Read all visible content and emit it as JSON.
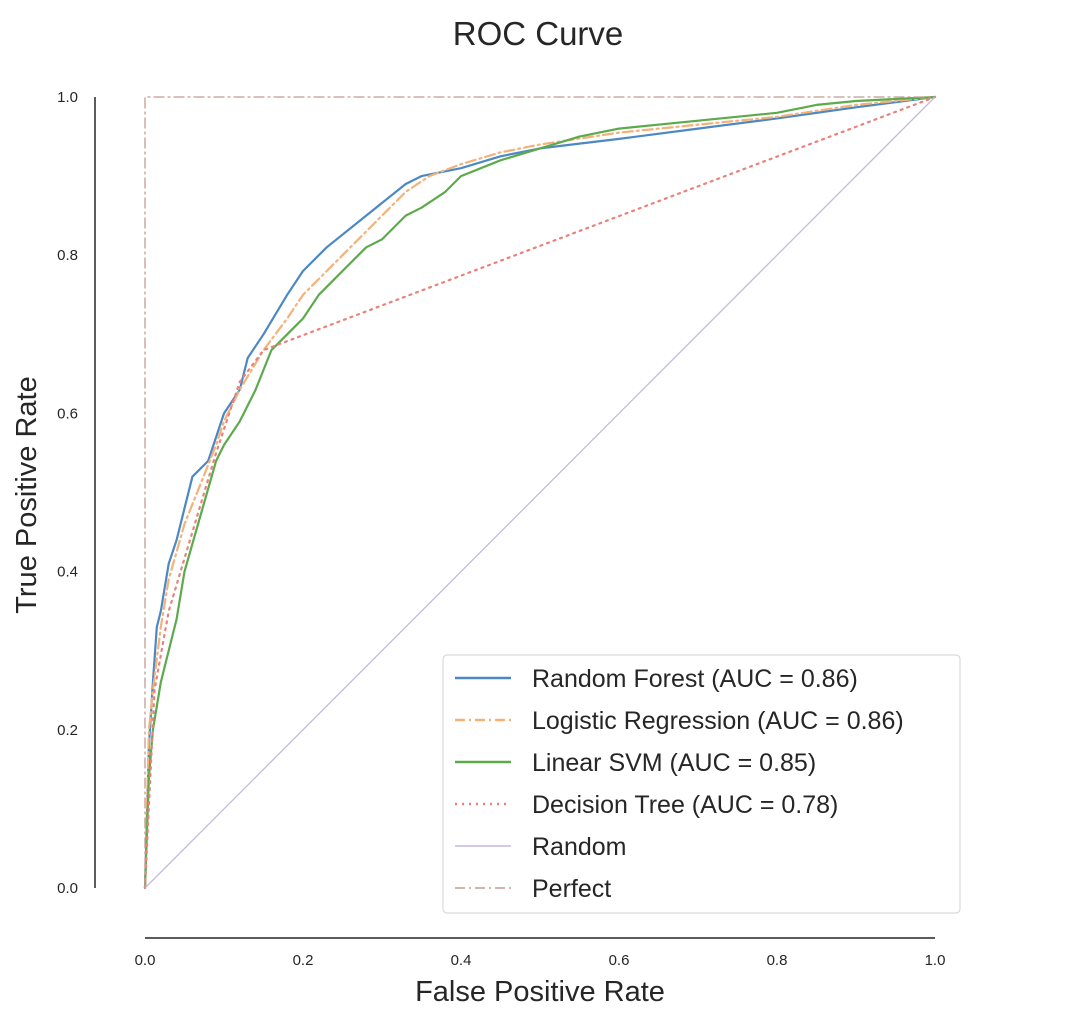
{
  "chart_data": {
    "type": "line",
    "title": "ROC Curve",
    "xlabel": "False Positive Rate",
    "ylabel": "True Positive Rate",
    "xlim": [
      0,
      1
    ],
    "ylim": [
      0,
      1
    ],
    "grid": false,
    "legend_position": "lower-right",
    "x_ticks": [
      "0.0",
      "0.2",
      "0.4",
      "0.6",
      "0.8",
      "1.0"
    ],
    "y_ticks": [
      "0.0",
      "0.2",
      "0.4",
      "0.6",
      "0.8",
      "1.0"
    ],
    "series": [
      {
        "name": "Random Forest (AUC = 0.86)",
        "color": "#4c88c4",
        "dash": "solid",
        "x": [
          0,
          0.005,
          0.01,
          0.015,
          0.02,
          0.03,
          0.04,
          0.05,
          0.06,
          0.08,
          0.09,
          0.1,
          0.12,
          0.13,
          0.15,
          0.18,
          0.2,
          0.23,
          0.28,
          0.33,
          0.35,
          0.4,
          0.45,
          0.5,
          0.6,
          0.7,
          0.8,
          0.9,
          1.0
        ],
        "y": [
          0,
          0.18,
          0.26,
          0.33,
          0.35,
          0.41,
          0.44,
          0.48,
          0.52,
          0.54,
          0.57,
          0.6,
          0.63,
          0.67,
          0.7,
          0.75,
          0.78,
          0.81,
          0.85,
          0.89,
          0.9,
          0.91,
          0.925,
          0.935,
          0.947,
          0.96,
          0.973,
          0.987,
          1.0
        ]
      },
      {
        "name": "Logistic Regression (AUC = 0.86)",
        "color": "#f4b27a",
        "dash": "dashdot",
        "x": [
          0,
          0.005,
          0.01,
          0.02,
          0.03,
          0.05,
          0.07,
          0.09,
          0.1,
          0.12,
          0.15,
          0.18,
          0.2,
          0.25,
          0.3,
          0.33,
          0.36,
          0.4,
          0.45,
          0.5,
          0.6,
          0.7,
          0.8,
          0.9,
          1.0
        ],
        "y": [
          0,
          0.2,
          0.25,
          0.33,
          0.39,
          0.46,
          0.51,
          0.56,
          0.59,
          0.63,
          0.68,
          0.72,
          0.75,
          0.8,
          0.85,
          0.88,
          0.9,
          0.915,
          0.93,
          0.94,
          0.955,
          0.965,
          0.975,
          0.99,
          1.0
        ]
      },
      {
        "name": "Linear SVM (AUC = 0.85)",
        "color": "#5daa4c",
        "dash": "solid",
        "x": [
          0,
          0.005,
          0.01,
          0.02,
          0.03,
          0.04,
          0.05,
          0.07,
          0.09,
          0.1,
          0.12,
          0.14,
          0.16,
          0.18,
          0.2,
          0.22,
          0.25,
          0.28,
          0.3,
          0.33,
          0.35,
          0.38,
          0.4,
          0.45,
          0.5,
          0.55,
          0.6,
          0.7,
          0.8,
          0.85,
          0.9,
          1.0
        ],
        "y": [
          0,
          0.14,
          0.2,
          0.26,
          0.3,
          0.34,
          0.4,
          0.47,
          0.54,
          0.56,
          0.59,
          0.63,
          0.68,
          0.7,
          0.72,
          0.75,
          0.78,
          0.81,
          0.82,
          0.85,
          0.86,
          0.88,
          0.9,
          0.92,
          0.935,
          0.95,
          0.96,
          0.97,
          0.98,
          0.99,
          0.995,
          1.0
        ]
      },
      {
        "name": "Decision Tree (AUC = 0.78)",
        "color": "#e8827a",
        "dash": "dotted",
        "x": [
          0,
          0.012,
          0.03,
          0.06,
          0.09,
          0.12,
          0.15,
          1.0
        ],
        "y": [
          0,
          0.25,
          0.35,
          0.45,
          0.55,
          0.64,
          0.68,
          1.0
        ]
      },
      {
        "name": "Random",
        "color": "#c6b9e0",
        "dash": "solid",
        "x": [
          0,
          1
        ],
        "y": [
          0,
          1
        ]
      },
      {
        "name": "Perfect",
        "color": "#c49a92",
        "dash": "dashdot",
        "x": [
          0,
          0,
          1
        ],
        "y": [
          0,
          1,
          1
        ]
      }
    ]
  }
}
